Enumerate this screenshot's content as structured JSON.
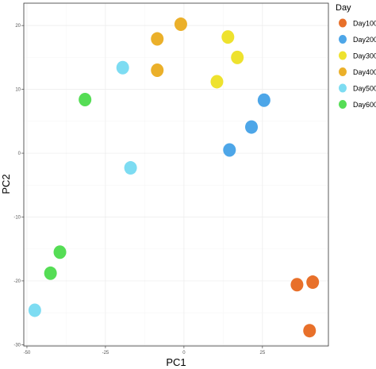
{
  "chart_data": {
    "type": "scatter",
    "xlabel": "PC1",
    "ylabel": "PC2",
    "xlim": [
      -51,
      46
    ],
    "ylim": [
      -30.2,
      23.5
    ],
    "x_ticks": [
      -50,
      -25,
      0,
      25
    ],
    "x_tick_labels": [
      "-50",
      "-25",
      "0",
      "25"
    ],
    "y_ticks": [
      -30,
      -20,
      -10,
      0,
      10,
      20
    ],
    "y_tick_labels": [
      "-30",
      "-20",
      "-10",
      "0",
      "10",
      "20"
    ],
    "grid": true,
    "legend": {
      "title": "Day",
      "placement": "right",
      "entries": [
        "Day100",
        "Day200",
        "Day300",
        "Day400",
        "Day500",
        "Day600"
      ]
    },
    "series": [
      {
        "name": "Day100",
        "color": "#E8702A",
        "points": [
          [
            36,
            -20.6
          ],
          [
            41,
            -20.2
          ],
          [
            40,
            -27.8
          ]
        ]
      },
      {
        "name": "Day200",
        "color": "#4DA6E8",
        "points": [
          [
            25.5,
            8.3
          ],
          [
            21.5,
            4.1
          ],
          [
            14.5,
            0.5
          ]
        ]
      },
      {
        "name": "Day300",
        "color": "#EEE22E",
        "points": [
          [
            14,
            18.2
          ],
          [
            17,
            15
          ],
          [
            10.5,
            11.2
          ]
        ]
      },
      {
        "name": "Day400",
        "color": "#EBB02A",
        "points": [
          [
            -1,
            20.2
          ],
          [
            -8.5,
            17.9
          ],
          [
            -8.5,
            13
          ]
        ]
      },
      {
        "name": "Day500",
        "color": "#7DDCF2",
        "points": [
          [
            -19.5,
            13.4
          ],
          [
            -17,
            -2.3
          ],
          [
            -47.5,
            -24.6
          ]
        ]
      },
      {
        "name": "Day600",
        "color": "#55DD55",
        "points": [
          [
            -31.5,
            8.4
          ],
          [
            -39.5,
            -15.5
          ],
          [
            -42.5,
            -18.8
          ]
        ]
      }
    ]
  }
}
